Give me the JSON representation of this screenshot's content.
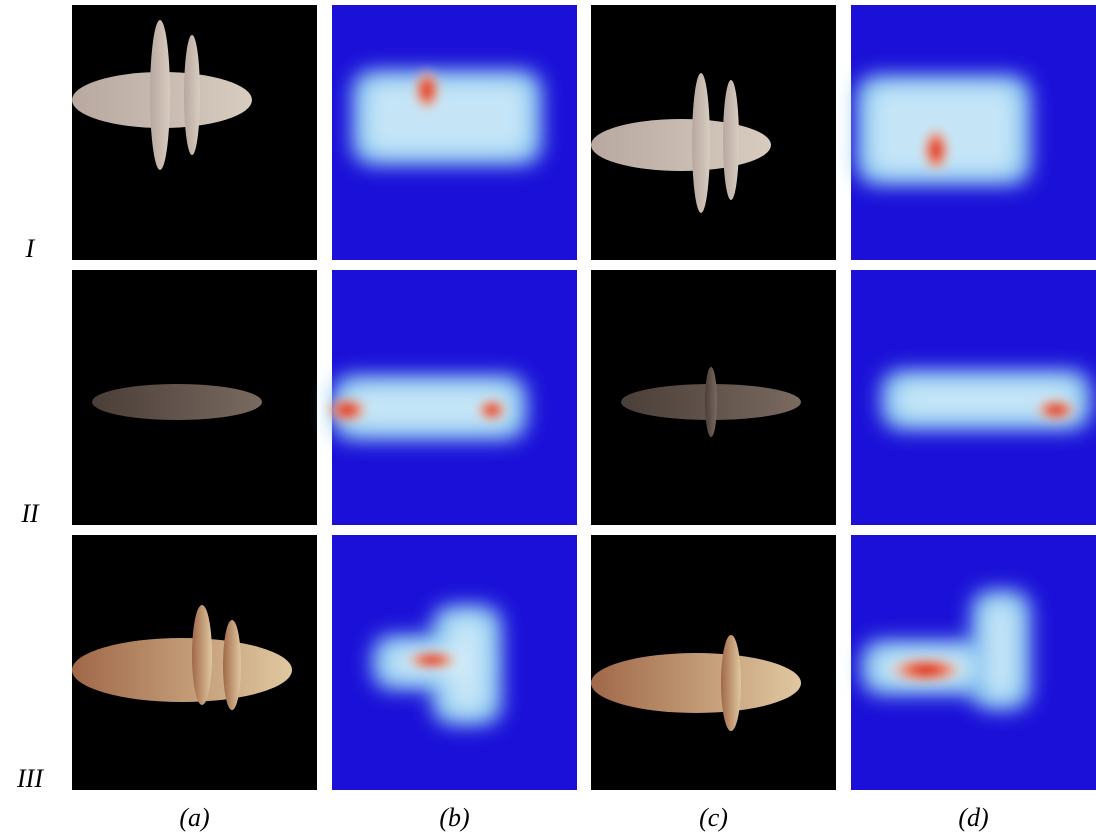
{
  "row_labels": [
    "I",
    "II",
    "III"
  ],
  "column_labels": [
    "(a)",
    "(b)",
    "(c)",
    "(d)"
  ]
}
